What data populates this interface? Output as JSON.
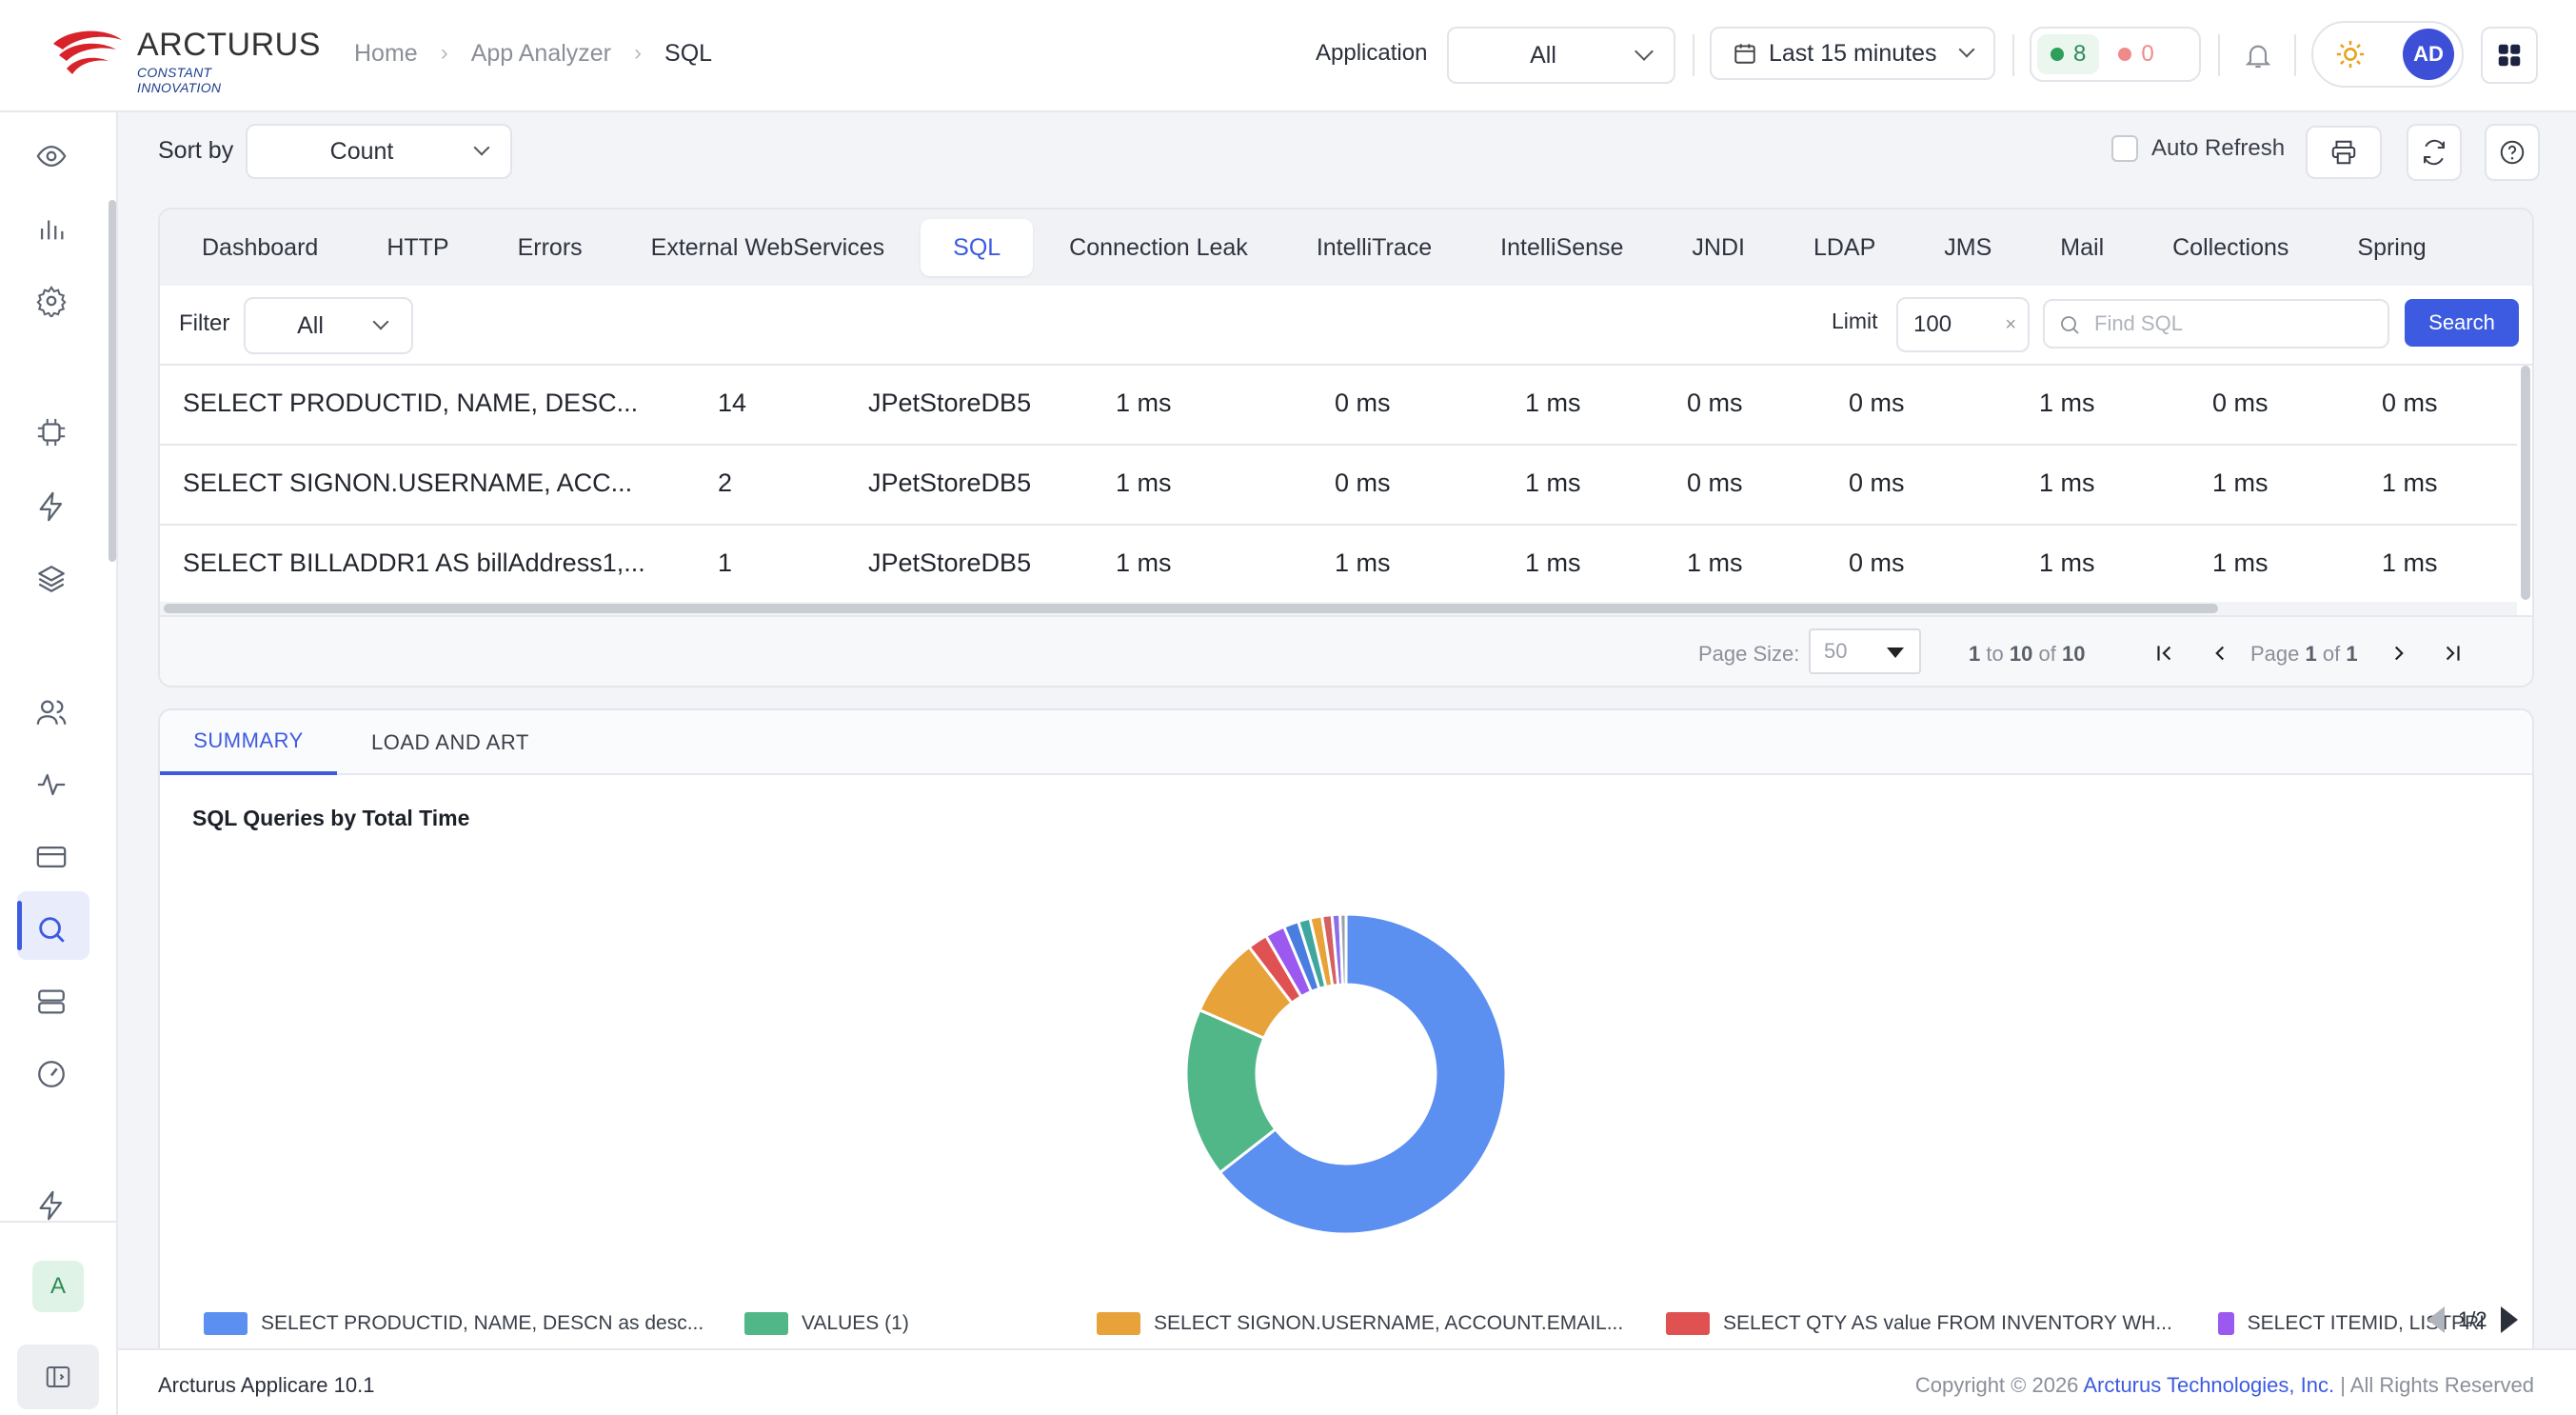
{
  "brand": {
    "name": "ARCTURUS",
    "tagline": "CONSTANT INNOVATION"
  },
  "breadcrumb": [
    "Home",
    "App Analyzer",
    "SQL"
  ],
  "header": {
    "application_label": "Application",
    "application_value": "All",
    "time_range": "Last 15 minutes",
    "status_green_count": "8",
    "status_red_count": "0",
    "user_initials": "AD"
  },
  "toolbar": {
    "sort_label": "Sort by",
    "sort_value": "Count",
    "auto_refresh_label": "Auto Refresh"
  },
  "tabs": [
    "Dashboard",
    "HTTP",
    "Errors",
    "External WebServices",
    "SQL",
    "Connection Leak",
    "IntelliTrace",
    "IntelliSense",
    "JNDI",
    "LDAP",
    "JMS",
    "Mail",
    "Collections",
    "Spring"
  ],
  "active_tab": "SQL",
  "filter": {
    "label": "Filter",
    "value": "All",
    "limit_label": "Limit",
    "limit_value": "100",
    "find_placeholder": "Find SQL",
    "search_label": "Search"
  },
  "table": {
    "rows": [
      [
        "SELECT PRODUCTID, NAME, DESC...",
        "14",
        "JPetStoreDB5",
        "1 ms",
        "0 ms",
        "1 ms",
        "0 ms",
        "0 ms",
        "1 ms",
        "0 ms",
        "0 ms"
      ],
      [
        "SELECT SIGNON.USERNAME, ACC...",
        "2",
        "JPetStoreDB5",
        "1 ms",
        "0 ms",
        "1 ms",
        "0 ms",
        "0 ms",
        "1 ms",
        "1 ms",
        "1 ms"
      ],
      [
        "SELECT BILLADDR1 AS billAddress1,...",
        "1",
        "JPetStoreDB5",
        "1 ms",
        "1 ms",
        "1 ms",
        "1 ms",
        "0 ms",
        "1 ms",
        "1 ms",
        "1 ms"
      ]
    ]
  },
  "pager": {
    "page_size_label": "Page Size:",
    "page_size": "50",
    "range_from": "1",
    "range_to_word": "to",
    "range_to": "10",
    "range_of_word": "of",
    "range_total": "10",
    "page_word": "Page",
    "page_current": "1",
    "page_of_word": "of",
    "page_total": "1"
  },
  "summary": {
    "tabs": [
      "SUMMARY",
      "LOAD AND ART"
    ],
    "active_tab": "SUMMARY",
    "legend_page": "1/2"
  },
  "chart_data": {
    "type": "pie",
    "title": "SQL Queries by Total Time",
    "donut": true,
    "legend_position": "bottom",
    "slices": [
      {
        "label": "SELECT PRODUCTID, NAME, DESCN as desc...",
        "value": 64,
        "color": "#5b8ff0"
      },
      {
        "label": "VALUES (1)",
        "value": 17,
        "color": "#52b788"
      },
      {
        "label": "SELECT SIGNON.USERNAME, ACCOUNT.EMAIL...",
        "value": 8,
        "color": "#e8a23a"
      },
      {
        "label": "SELECT QTY AS value FROM INVENTORY WH...",
        "value": 2,
        "color": "#e05252"
      },
      {
        "label": "SELECT ITEMID, LISTPRI",
        "value": 2,
        "color": "#9b59f0"
      },
      {
        "label": "",
        "value": 1.5,
        "color": "#4a7de0"
      },
      {
        "label": "",
        "value": 1.2,
        "color": "#3fa7a0"
      },
      {
        "label": "",
        "value": 1.2,
        "color": "#e8a23a"
      },
      {
        "label": "",
        "value": 1,
        "color": "#d46060"
      },
      {
        "label": "",
        "value": 0.8,
        "color": "#8b6ee8"
      },
      {
        "label": "",
        "value": 0.6,
        "color": "#9aa0aa"
      }
    ]
  },
  "footer": {
    "version": "Arcturus Applicare 10.1",
    "copyright_prefix": "Copyright © 2026",
    "company": "Arcturus Technologies, Inc.",
    "rights": "| All Rights Reserved"
  }
}
